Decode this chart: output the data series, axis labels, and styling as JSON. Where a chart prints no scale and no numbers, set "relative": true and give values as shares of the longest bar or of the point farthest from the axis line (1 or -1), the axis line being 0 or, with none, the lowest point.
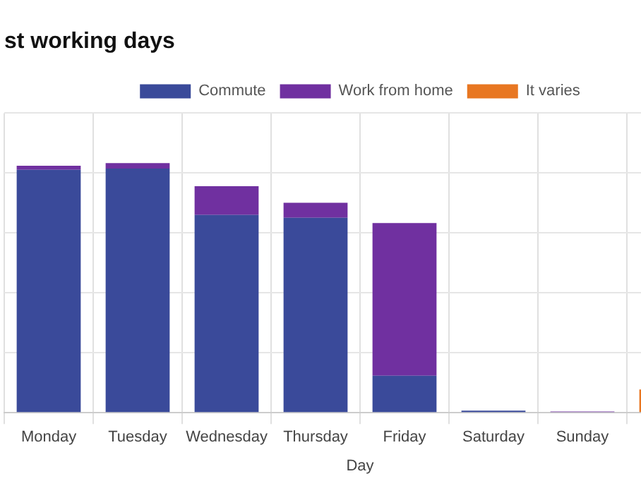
{
  "chart_data": {
    "type": "bar",
    "title": "st working days",
    "xlabel": "Day",
    "relative": true,
    "stacked": true,
    "grid": true,
    "legend": "top",
    "categories": [
      "Monday",
      "Tuesday",
      "Wednesday",
      "Thursday",
      "Friday",
      "Saturday",
      "Sunday",
      null
    ],
    "series": [
      {
        "name": "Commute",
        "color": "#3a4a9a",
        "values": [
          0.973,
          0.978,
          0.792,
          0.781,
          0.148,
          0.008,
          0,
          0
        ]
      },
      {
        "name": "Work from home",
        "color": "#7030a0",
        "values": [
          0.016,
          0.022,
          0.115,
          0.06,
          0.612,
          0,
          0.005,
          0
        ]
      },
      {
        "name": "It varies",
        "color": "#e87722",
        "values": [
          0,
          0,
          0,
          0,
          0,
          0,
          0,
          0.093
        ]
      }
    ]
  }
}
